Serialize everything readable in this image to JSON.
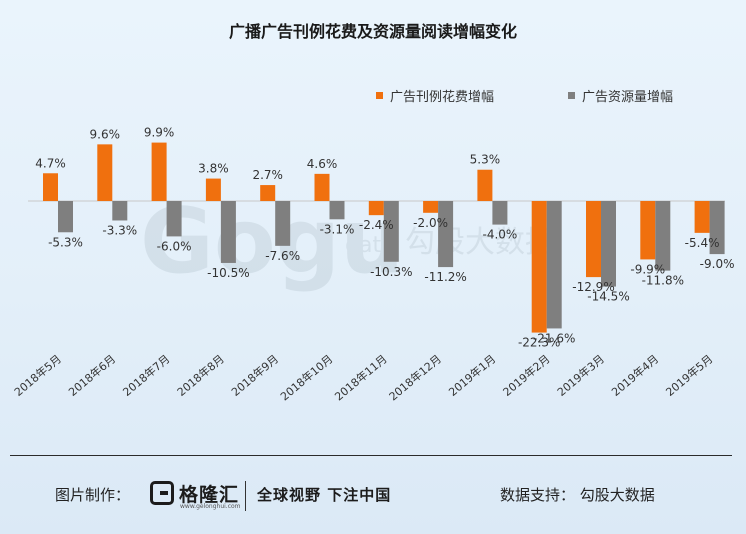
{
  "chart_data": {
    "type": "bar",
    "title": "广播广告刊例花费及资源量阅读增幅变化",
    "categories": [
      "2018年5月",
      "2018年6月",
      "2018年7月",
      "2018年8月",
      "2018年9月",
      "2018年10月",
      "2018年11月",
      "2018年12月",
      "2019年1月",
      "2019年2月",
      "2019年3月",
      "2019年4月",
      "2019年5月"
    ],
    "series": [
      {
        "name": "广告刊例花费增幅",
        "color": "#f0700e",
        "values": [
          4.7,
          9.6,
          9.9,
          3.8,
          2.7,
          4.6,
          -2.4,
          -2.0,
          5.3,
          -22.3,
          -12.9,
          -9.9,
          -5.4
        ],
        "labels": [
          "4.7%",
          "9.6%",
          "9.9%",
          "3.8%",
          "2.7%",
          "4.6%",
          "-2.4%",
          "-2.0%",
          "5.3%",
          "-22.3%",
          "-12.9%",
          "-9.9%",
          "-5.4%"
        ]
      },
      {
        "name": "广告资源量增幅",
        "color": "#7f7f7f",
        "values": [
          -5.3,
          -3.3,
          -6.0,
          -10.5,
          -7.6,
          -3.1,
          -10.3,
          -11.2,
          -4.0,
          -21.6,
          -14.5,
          -11.8,
          -9.0
        ],
        "labels": [
          "-5.3%",
          "-3.3%",
          "-6.0%",
          "-10.5%",
          "-7.6%",
          "-3.1%",
          "-10.3%",
          "-11.2%",
          "-4.0%",
          "-21.6%",
          "-14.5%",
          "-11.8%",
          "-9.0%"
        ]
      }
    ],
    "legend_position": "top-right",
    "grid": false
  },
  "watermark": {
    "text": "Gogu",
    "sub": "data",
    "cn": "勾股大数据"
  },
  "footer": {
    "made_by_label": "图片制作：",
    "brand_name": "格隆汇",
    "brand_url": "www.gelonghui.com",
    "slogan": "全球视野 下注中国",
    "data_support": "数据支持：  勾股大数据"
  }
}
